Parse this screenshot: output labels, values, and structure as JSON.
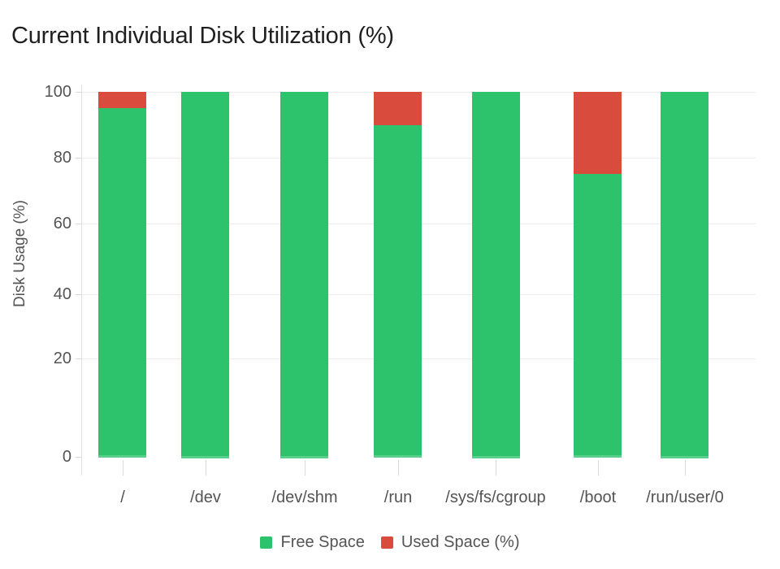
{
  "chart_data": {
    "type": "bar",
    "stacked": true,
    "title": "Current Individual Disk Utilization (%)",
    "xlabel": "",
    "ylabel": "Disk Usage (%)",
    "categories": [
      "/",
      "/dev",
      "/dev/shm",
      "/run",
      "/sys/fs/cgroup",
      "/boot",
      "/run/user/0"
    ],
    "series": [
      {
        "name": "Free Space",
        "color": "#2dc36c",
        "values": [
          95,
          100,
          100,
          90,
          100,
          75,
          100
        ]
      },
      {
        "name": "Used Space (%)",
        "color": "#d94b3c",
        "values": [
          5,
          0,
          0,
          10,
          0,
          25,
          0
        ]
      }
    ],
    "ylim": [
      0,
      100
    ],
    "yticks": [
      0,
      20,
      40,
      60,
      80,
      100
    ],
    "grid": true,
    "legend_position": "bottom",
    "colors": {
      "free_space": "#2dc36c",
      "used_space": "#d94b3c",
      "gridline": "#ececec",
      "axis_line": "#e2e2e2",
      "tick_mark": "#d9d9d9",
      "axis_text": "#545454",
      "title_text": "#1f1f1f",
      "background": "#ffffff"
    }
  }
}
